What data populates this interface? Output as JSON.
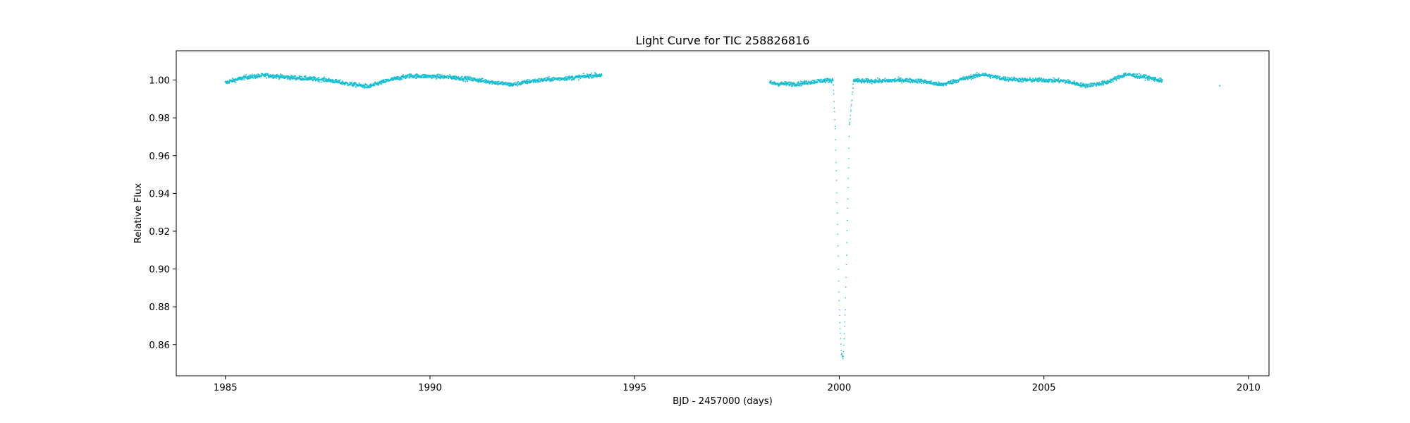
{
  "chart_data": {
    "type": "scatter",
    "title": "Light Curve for TIC 258826816",
    "xlabel": "BJD - 2457000 (days)",
    "ylabel": "Relative Flux",
    "xlim": [
      1983.8,
      2010.5
    ],
    "ylim": [
      0.8435,
      1.0155
    ],
    "xticks": [
      1985,
      1990,
      1995,
      2000,
      2005,
      2010
    ],
    "yticks": [
      0.86,
      0.88,
      0.9,
      0.92,
      0.94,
      0.96,
      0.98,
      1.0
    ],
    "ytick_labels": [
      "0.86",
      "0.88",
      "0.90",
      "0.92",
      "0.94",
      "0.96",
      "0.98",
      "1.00"
    ],
    "grid": false,
    "legend": "none",
    "series": [
      {
        "color": "#17becf",
        "cadence_days": 0.00139,
        "segments": [
          {
            "x": [
              1985.0,
              1985.1,
              1985.5,
              1986.0,
              1986.5,
              1987.0,
              1987.5,
              1988.0,
              1988.5,
              1989.0,
              1989.5,
              1990.0,
              1990.5,
              1991.0,
              1991.5,
              1992.0,
              1992.5,
              1993.0,
              1993.5,
              1994.0,
              1994.2
            ],
            "y": [
              0.9985,
              0.9993,
              1.0015,
              1.0025,
              1.0015,
              1.0008,
              1.0,
              0.998,
              0.9965,
              1.0,
              1.0022,
              1.002,
              1.0015,
              1.0005,
              0.999,
              0.9975,
              0.9995,
              1.0005,
              1.0012,
              1.0025,
              1.0025
            ]
          },
          {
            "x": [
              1998.3,
              1998.5,
              1999.0,
              1999.5,
              1999.85,
              1999.9,
              1999.95,
              2000.0,
              2000.05,
              2000.1,
              2000.15,
              2000.2,
              2000.25,
              2000.35,
              2000.5,
              2001.0,
              2001.5,
              2002.0,
              2002.5,
              2003.0,
              2003.5,
              2004.0,
              2004.5,
              2005.0,
              2005.5,
              2006.0,
              2006.5,
              2007.0,
              2007.5,
              2007.9
            ],
            "y": [
              0.9985,
              0.998,
              0.998,
              0.9995,
              1.0,
              0.975,
              0.93,
              0.88,
              0.855,
              0.853,
              0.88,
              0.93,
              0.975,
              1.0,
              0.9995,
              0.9995,
              1.0,
              0.9995,
              0.9975,
              1.0005,
              1.003,
              1.0008,
              1.0,
              1.0,
              0.9995,
              0.997,
              0.9985,
              1.003,
              1.0015,
              0.9995
            ]
          },
          {
            "x": [
              2009.3
            ],
            "y": [
              0.997
            ]
          }
        ]
      }
    ]
  }
}
